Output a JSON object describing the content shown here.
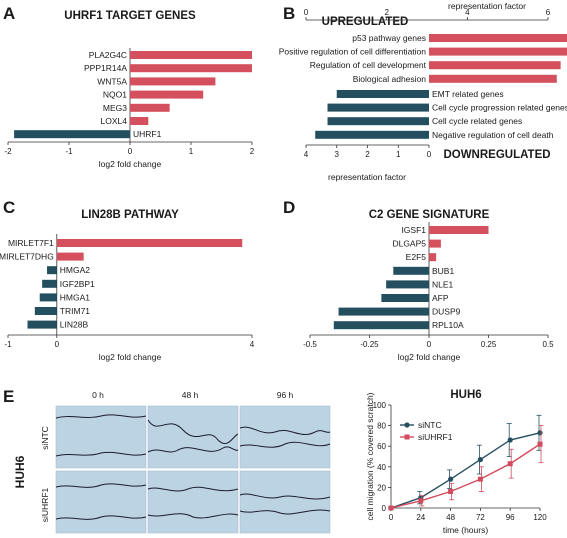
{
  "colors": {
    "up": "#d4505f",
    "down": "#234f5e",
    "dark_line": "#26505f",
    "red_line": "#d24b5f",
    "micro_bg": "#bcd3e4"
  },
  "panel_labels": [
    "A",
    "B",
    "C",
    "D",
    "E"
  ],
  "chart_data": [
    {
      "id": "A",
      "type": "bar",
      "orientation": "horizontal",
      "title": "UHRF1 TARGET GENES",
      "xlabel": "log2 fold change",
      "xlim": [
        -2,
        2
      ],
      "xticks": [
        "-2",
        "-1",
        "0",
        "1",
        "2"
      ],
      "categories": [
        "PLA2G4C",
        "PPP1R14A",
        "WNT5A",
        "NQO1",
        "MEG3",
        "LOXL4",
        "UHRF1"
      ],
      "values": [
        2.0,
        2.0,
        1.4,
        1.2,
        0.65,
        0.3,
        -1.9
      ],
      "label_side": [
        "left",
        "left",
        "left",
        "left",
        "left",
        "left",
        "right"
      ]
    },
    {
      "id": "B",
      "type": "bar",
      "orientation": "horizontal",
      "title_up": "UPREGULATED",
      "title_down": "DOWNREGULATED",
      "xlabel_top": "representation factor",
      "xlabel_bottom": "representation factor",
      "top_axis": {
        "lim": [
          0,
          6
        ],
        "ticks": [
          "0",
          "2",
          "4",
          "6"
        ]
      },
      "bottom_axis": {
        "lim": [
          0,
          4
        ],
        "ticks": [
          "4",
          "3",
          "2",
          "1",
          "0"
        ],
        "reversed": true
      },
      "upregulated": {
        "categories": [
          "p53 pathway genes",
          "Positive regulation of cell differentiation",
          "Regulation of cell development",
          "Biological adhesion"
        ],
        "values": [
          5.9,
          3.7,
          3.4,
          3.3
        ]
      },
      "downregulated": {
        "categories": [
          "EMT related genes",
          "Cell cycle progression related genes",
          "Cell cycle related genes",
          "Negative regulation of cell death"
        ],
        "values": [
          3.0,
          3.3,
          3.3,
          3.7
        ]
      }
    },
    {
      "id": "C",
      "type": "bar",
      "orientation": "horizontal",
      "title": "LIN28B PATHWAY",
      "xlabel": "log2 fold change",
      "xlim": [
        -1,
        4
      ],
      "xticks": [
        "-1",
        "0",
        "4"
      ],
      "categories": [
        "MIRLET7F1",
        "MIRLET7DHG",
        "HMGA2",
        "IGF2BP1",
        "HMGA1",
        "TRIM71",
        "LIN28B"
      ],
      "values": [
        3.8,
        0.55,
        -0.2,
        -0.3,
        -0.35,
        -0.45,
        -0.6
      ]
    },
    {
      "id": "D",
      "type": "bar",
      "orientation": "horizontal",
      "title": "C2 GENE SIGNATURE",
      "xlabel": "log2 fold change",
      "xlim": [
        -0.5,
        0.5
      ],
      "xticks": [
        "-0.5",
        "-0.25",
        "0",
        "0.25",
        "0.5"
      ],
      "categories": [
        "IGSF1",
        "DLGAP5",
        "E2F5",
        "BUB1",
        "NLE1",
        "AFP",
        "DUSP9",
        "RPL10A"
      ],
      "values": [
        0.25,
        0.05,
        0.03,
        -0.15,
        -0.18,
        -0.2,
        -0.38,
        -0.4
      ]
    },
    {
      "id": "E",
      "type": "line",
      "title": "HUH6",
      "xlabel": "time (hours)",
      "ylabel": "cell migration (% covered scratch)",
      "xlim": [
        0,
        120
      ],
      "ylim": [
        0,
        100
      ],
      "xticks": [
        "0",
        "24",
        "48",
        "72",
        "96",
        "120"
      ],
      "yticks": [
        "0",
        "20",
        "40",
        "60",
        "80",
        "100"
      ],
      "x": [
        0,
        24,
        48,
        72,
        96,
        120
      ],
      "legend_position": "top-left",
      "series": [
        {
          "name": "siNTC",
          "values": [
            0,
            10,
            28,
            47,
            66,
            73
          ],
          "errors": [
            0,
            6,
            9,
            14,
            16,
            17
          ]
        },
        {
          "name": "siUHRF1",
          "values": [
            0,
            7,
            16,
            28,
            43,
            62
          ],
          "errors": [
            0,
            5,
            8,
            12,
            14,
            18
          ]
        }
      ]
    }
  ],
  "micrographs": {
    "time_labels": [
      "0 h",
      "48 h",
      "96 h"
    ],
    "row_labels": [
      "siNTC",
      "siUHRF1"
    ],
    "cell_line_label": "HUH6"
  }
}
